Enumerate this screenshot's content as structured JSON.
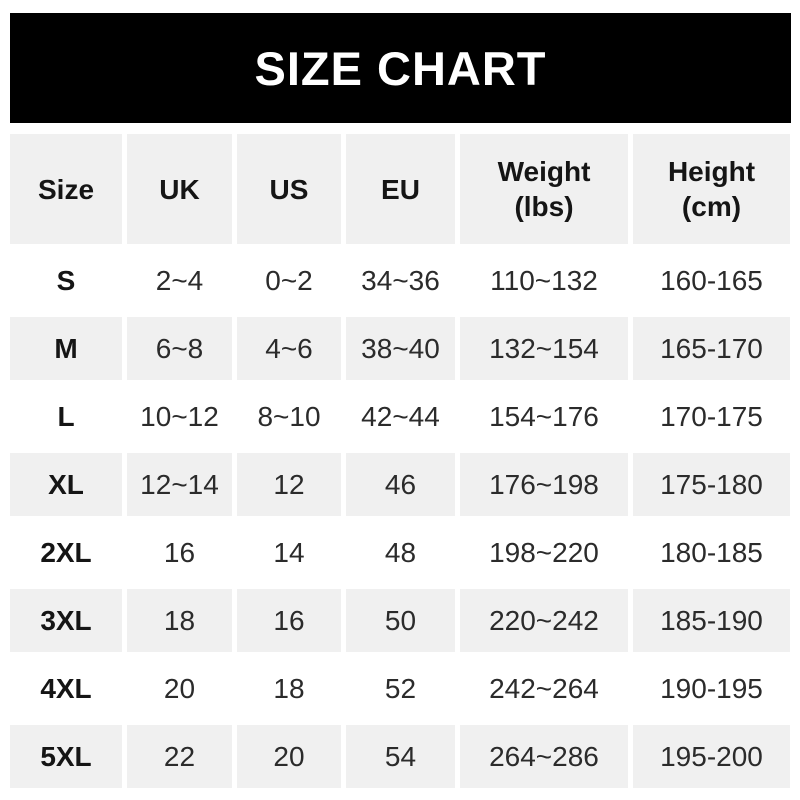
{
  "title": "SIZE CHART",
  "colors": {
    "banner_bg": "#000000",
    "banner_text": "#ffffff",
    "row_shaded": "#f0f0f0",
    "row_plain": "#ffffff",
    "text": "#2b2b2b"
  },
  "chart_data": {
    "type": "table",
    "title": "SIZE CHART",
    "columns": [
      "Size",
      "UK",
      "US",
      "EU",
      "Weight\n(lbs)",
      "Height\n(cm)"
    ],
    "rows": [
      [
        "S",
        "2~4",
        "0~2",
        "34~36",
        "110~132",
        "160-165"
      ],
      [
        "M",
        "6~8",
        "4~6",
        "38~40",
        "132~154",
        "165-170"
      ],
      [
        "L",
        "10~12",
        "8~10",
        "42~44",
        "154~176",
        "170-175"
      ],
      [
        "XL",
        "12~14",
        "12",
        "46",
        "176~198",
        "175-180"
      ],
      [
        "2XL",
        "16",
        "14",
        "48",
        "198~220",
        "180-185"
      ],
      [
        "3XL",
        "18",
        "16",
        "50",
        "220~242",
        "185-190"
      ],
      [
        "4XL",
        "20",
        "18",
        "52",
        "242~264",
        "190-195"
      ],
      [
        "5XL",
        "22",
        "20",
        "54",
        "264~286",
        "195-200"
      ]
    ],
    "layout": {
      "shaded_rows": [
        "header",
        "M",
        "XL",
        "3XL",
        "5XL"
      ],
      "grid": "white gutters between cells, no borders"
    }
  }
}
